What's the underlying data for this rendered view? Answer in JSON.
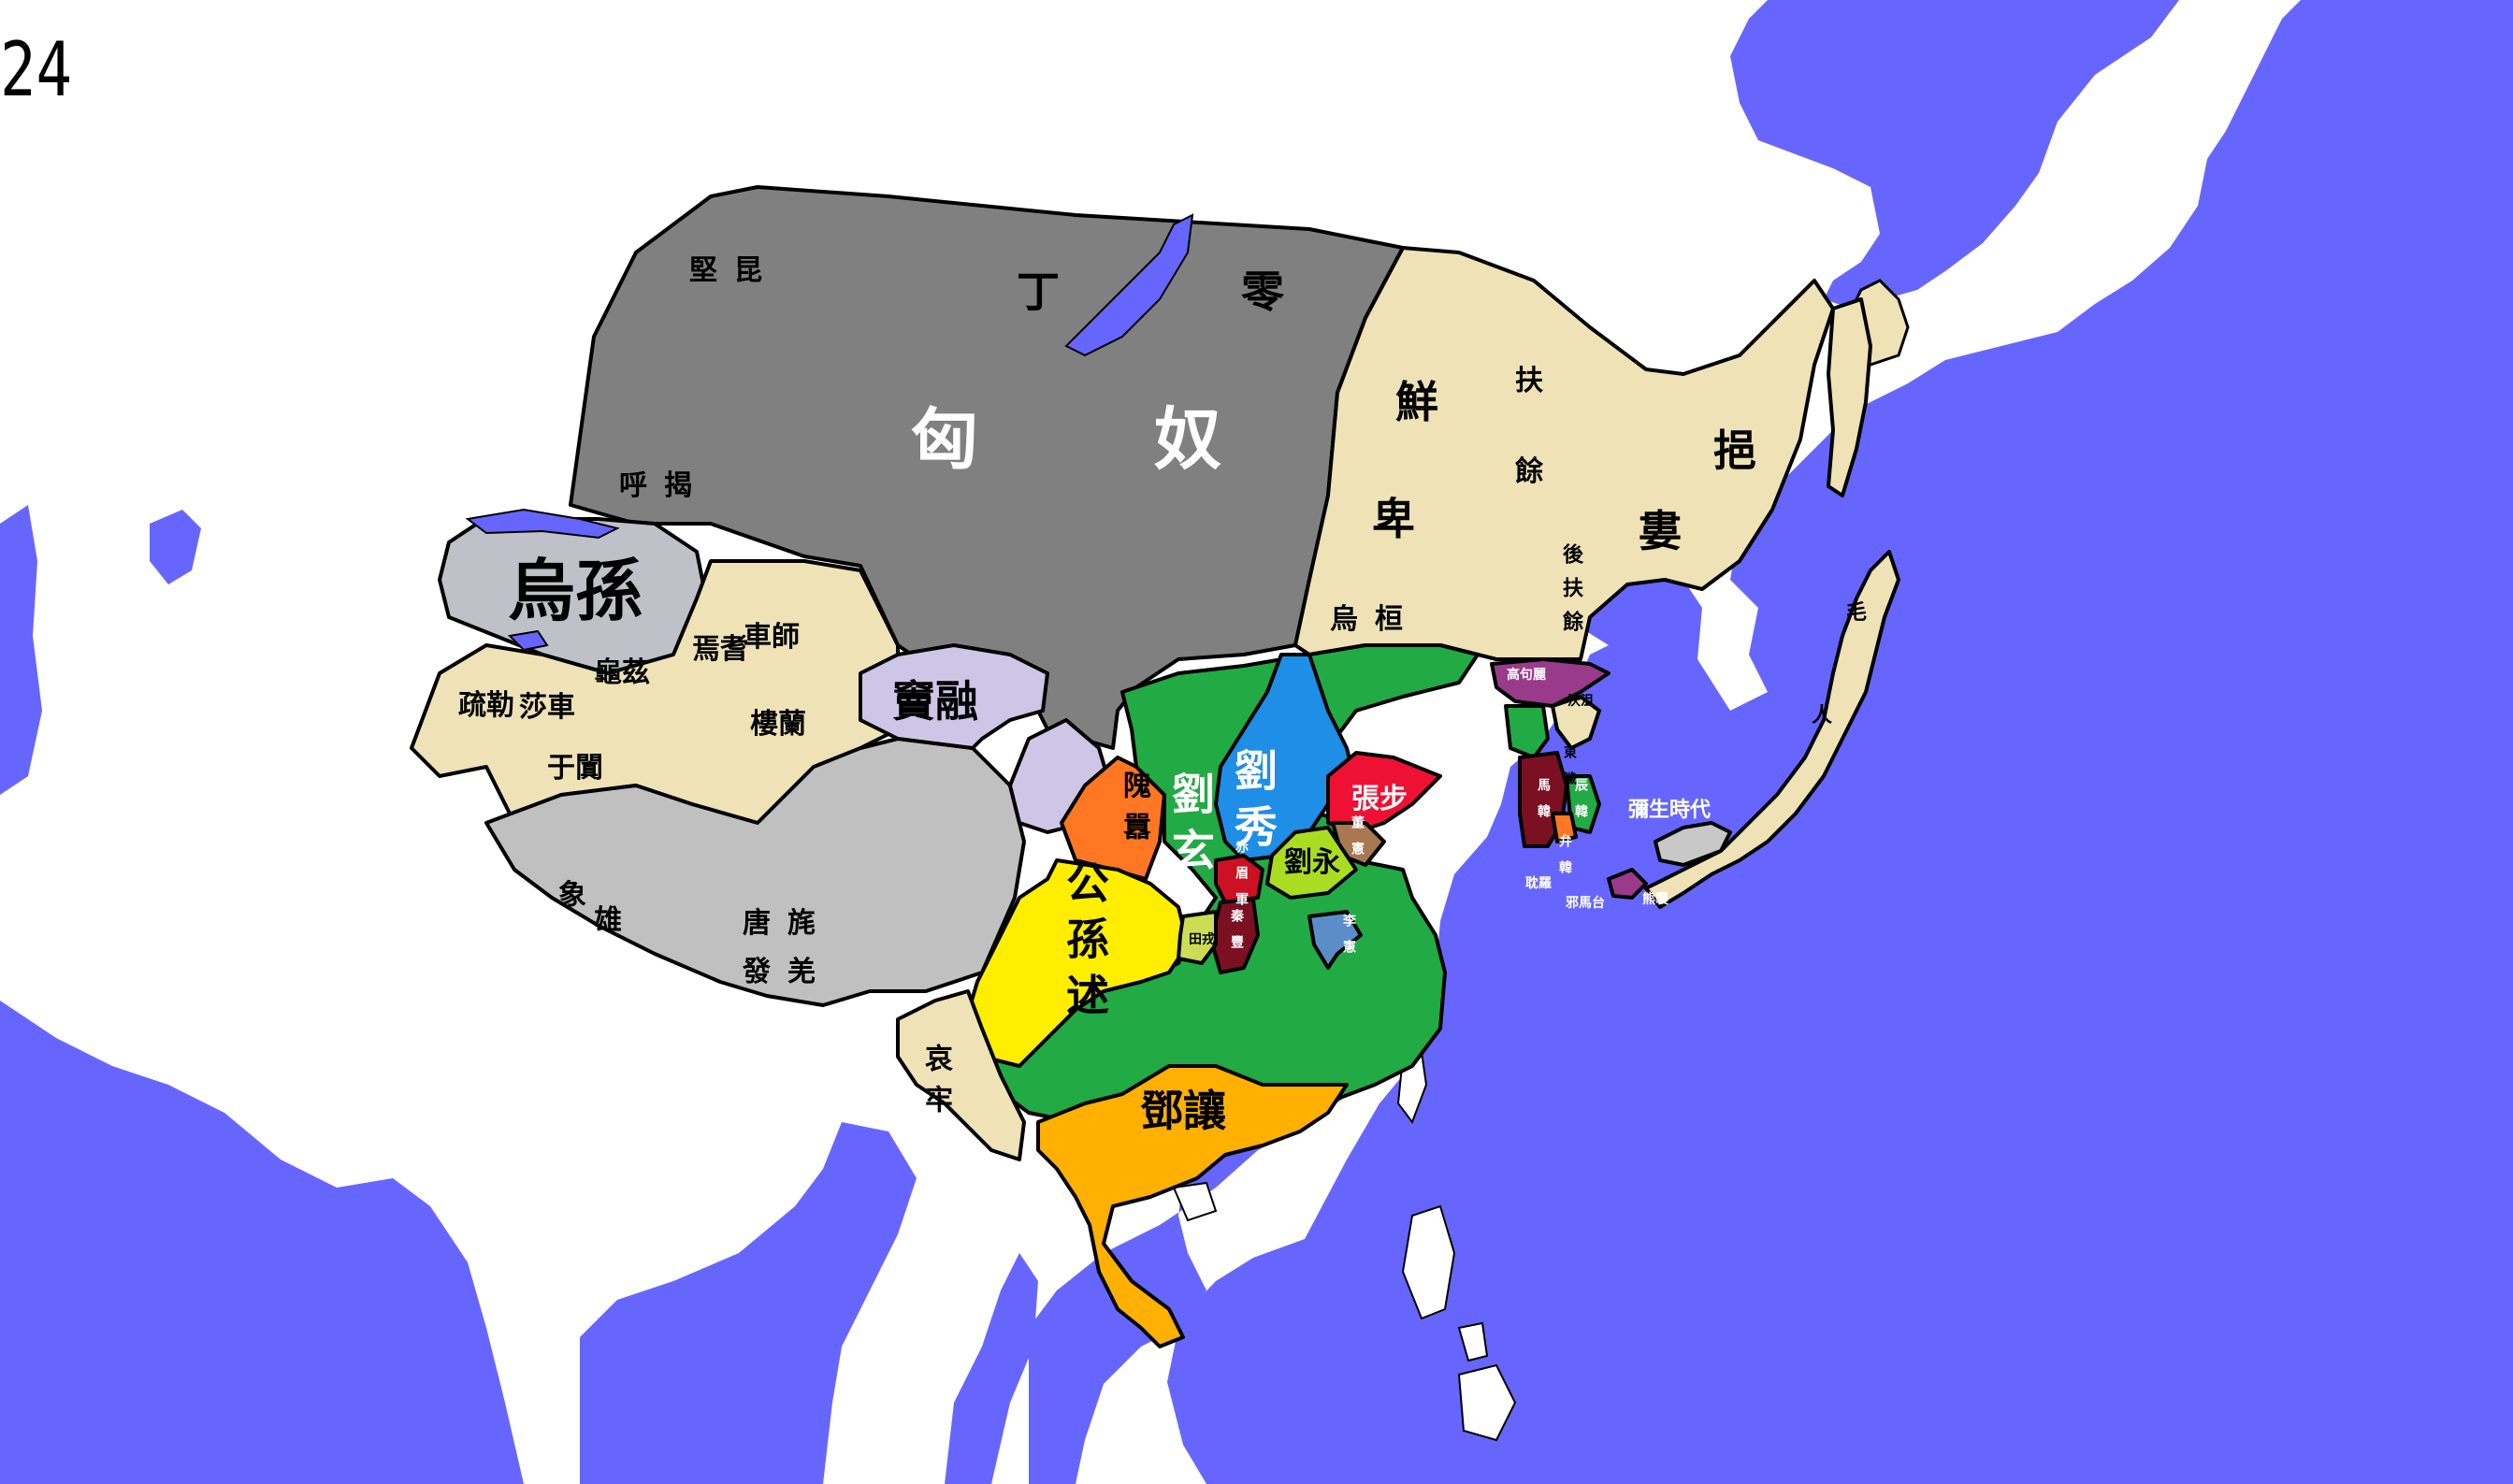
{
  "year": "24",
  "colors": {
    "sea": "#6666ff",
    "land": "#ffffff",
    "xiongnu": "#808080",
    "xianbei": "#eee2b6",
    "wusun": "#c0c0c8",
    "tarim": "#eee2b6",
    "qiang": "#c0c0c0",
    "dou_rong": "#cdc6e6",
    "liu_xuan": "#22aa44",
    "liu_xiu": "#1e8ee6",
    "gongsun_shu": "#ffee00",
    "wei_ao": "#ff7722",
    "zhang_bu": "#ee1133",
    "liu_yong": "#aadd22",
    "deng_rang": "#ffb000",
    "chimei": "#cc1122",
    "qin_feng": "#7a1022",
    "li_xian": "#5b8ec8",
    "dong_xian": "#a87850",
    "goguryeo": "#9a3a8a",
    "ailao": "#eee2b6",
    "yayoi": "#c8c8c8"
  },
  "labels": {
    "xiongnu": "匈奴",
    "dingling": "丁零",
    "jiankun": "堅昆",
    "hujie": "呼揭",
    "xianbei": "鮮",
    "xianbei2": "卑",
    "wuhuan": "烏桓",
    "fuyu": "扶",
    "fuyu2": "餘",
    "yilou": "挹",
    "yilou2": "婁",
    "houfuyu": "後扶餘",
    "wusun": "烏孫",
    "yanqi": "焉耆",
    "cheshi": "車師",
    "qiuci": "龜茲",
    "shule": "疏勒",
    "shache": "莎車",
    "loulan": "樓蘭",
    "yutian": "于闐",
    "dou_rong": "竇融",
    "xiangxiong": "象雄",
    "tangmao": "唐旄",
    "fajiang": "發羌",
    "wei_ao": "隗囂",
    "liu_xuan": "劉玄",
    "liu_xiu": "劉秀",
    "zhang_bu": "張步",
    "liu_yong": "劉永",
    "gongsun_shu": "公孫述",
    "chimei": "赤眉軍",
    "qin_feng": "秦豐",
    "tian_rong": "田戎",
    "li_xian": "李憲",
    "dong_xian": "董憲",
    "ailao": "哀牢",
    "deng_rang": "鄧讓",
    "goguryeo": "高句麗",
    "okjeo": "沃沮",
    "dongye": "東濊",
    "mahan": "馬韓",
    "chenhan": "辰韓",
    "byeonhan": "弁韓",
    "gaya": "耽羅",
    "yamatai": "邪馬台",
    "kumaso": "熊襲",
    "yayoi": "彌生時代",
    "emishi": "毛人"
  }
}
